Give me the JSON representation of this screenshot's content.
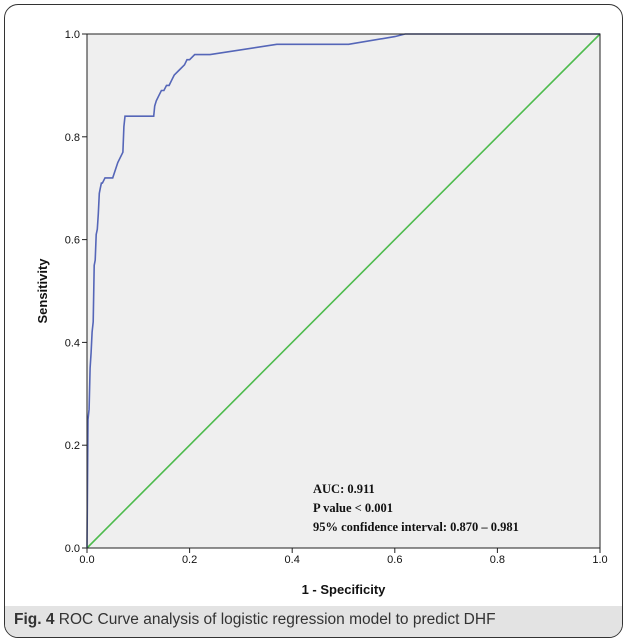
{
  "caption": {
    "label": "Fig. 4",
    "text": "ROC Curve analysis of logistic regression model to predict DHF"
  },
  "colors": {
    "roc": "#5566b8",
    "reference": "#4dbb4d",
    "plot_bg": "#efefef"
  },
  "chart_data": {
    "type": "line",
    "xlabel": "1 - Specificity",
    "ylabel": "Sensitivity",
    "xlim": [
      0,
      1
    ],
    "ylim": [
      0,
      1
    ],
    "xticks": [
      "0.0",
      "0.2",
      "0.4",
      "0.6",
      "0.8",
      "1.0"
    ],
    "yticks": [
      "0.0",
      "0.2",
      "0.4",
      "0.6",
      "0.8",
      "1.0"
    ],
    "grid": false,
    "annotations": [
      "AUC:  0.911",
      "P value < 0.001",
      "95% confidence interval: 0.870 – 0.981"
    ],
    "series": [
      {
        "x": [
          0,
          0.002,
          0.004,
          0.006,
          0.008,
          0.01,
          0.012,
          0.014,
          0.016,
          0.018,
          0.02,
          0.022,
          0.024,
          0.026,
          0.028,
          0.03,
          0.035,
          0.04,
          0.05,
          0.06,
          0.07,
          0.072,
          0.074,
          0.08,
          0.1,
          0.13,
          0.132,
          0.135,
          0.14,
          0.145,
          0.15,
          0.155,
          0.16,
          0.165,
          0.17,
          0.18,
          0.19,
          0.195,
          0.2,
          0.21,
          0.24,
          0.37,
          0.51,
          0.6,
          0.62,
          0.7,
          1.0
        ],
        "y": [
          0,
          0.25,
          0.27,
          0.35,
          0.38,
          0.42,
          0.44,
          0.55,
          0.56,
          0.61,
          0.62,
          0.65,
          0.69,
          0.7,
          0.71,
          0.71,
          0.72,
          0.72,
          0.72,
          0.75,
          0.77,
          0.82,
          0.84,
          0.84,
          0.84,
          0.84,
          0.86,
          0.87,
          0.88,
          0.89,
          0.89,
          0.9,
          0.9,
          0.91,
          0.92,
          0.93,
          0.94,
          0.95,
          0.95,
          0.96,
          0.96,
          0.98,
          0.98,
          0.995,
          1.0,
          1.0,
          1.0
        ]
      },
      {
        "x": [
          0,
          1
        ],
        "y": [
          0,
          1
        ]
      }
    ]
  }
}
